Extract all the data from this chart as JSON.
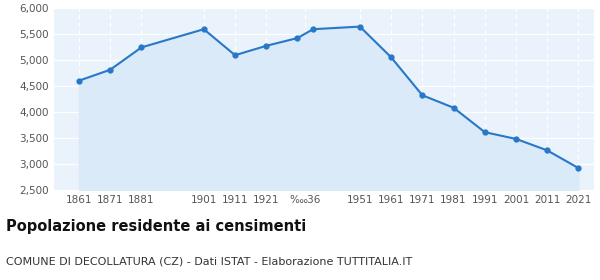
{
  "years": [
    1861,
    1871,
    1881,
    1901,
    1911,
    1921,
    1931,
    1936,
    1951,
    1961,
    1971,
    1981,
    1991,
    2001,
    2011,
    2021
  ],
  "population": [
    4610,
    4820,
    5250,
    5600,
    5100,
    5280,
    5430,
    5600,
    5650,
    5060,
    4330,
    4090,
    3620,
    3490,
    3270,
    2930
  ],
  "xtick_labels": [
    "1861",
    "1871",
    "1881",
    "1901",
    "1911",
    "1921",
    "‱36",
    "1951",
    "1961",
    "1971",
    "1981",
    "1991",
    "2001",
    "2011",
    "2021"
  ],
  "xtick_positions": [
    1861,
    1871,
    1881,
    1901,
    1911,
    1921,
    1933.5,
    1951,
    1961,
    1971,
    1981,
    1991,
    2001,
    2011,
    2021
  ],
  "ylim": [
    2500,
    6000
  ],
  "yticks": [
    2500,
    3000,
    3500,
    4000,
    4500,
    5000,
    5500,
    6000
  ],
  "line_color": "#2878c8",
  "fill_color": "#daeaf8",
  "marker_color": "#2878c8",
  "bg_color": "#eaf3fb",
  "grid_color": "#ffffff",
  "title": "Popolazione residente ai censimenti",
  "subtitle": "COMUNE DI DECOLLATURA (CZ) - Dati ISTAT - Elaborazione TUTTITALIA.IT",
  "title_fontsize": 10.5,
  "subtitle_fontsize": 8,
  "tick_label_color": "#555555",
  "xlim": [
    1853,
    2026
  ]
}
